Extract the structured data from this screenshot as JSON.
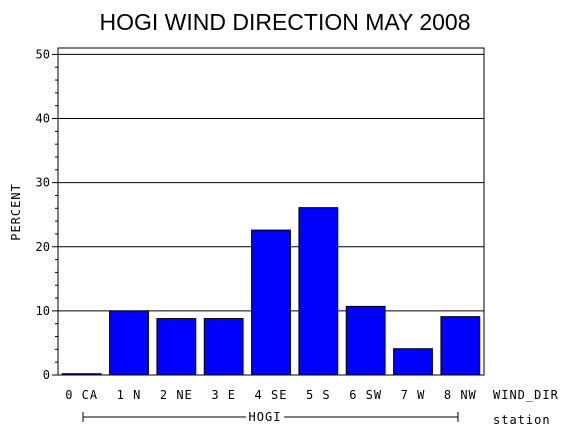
{
  "chart_data": {
    "type": "bar",
    "title": "HOGI WIND DIRECTION MAY 2008",
    "ylabel": "PERCENT",
    "xlabel": "WIND_DIR",
    "group_label": "HOGI",
    "group_axis_label": "station",
    "categories": [
      "0 CA",
      "1 N",
      "2 NE",
      "3 E",
      "4 SE",
      "5 S",
      "6 SW",
      "7 W",
      "8 NW"
    ],
    "values": [
      0.2,
      10.0,
      8.8,
      8.8,
      22.6,
      26.1,
      10.7,
      4.1,
      9.1
    ],
    "ylim": [
      0,
      51
    ],
    "yticks": [
      0,
      10,
      20,
      30,
      40,
      50
    ],
    "grid": true,
    "bar_color": "#0000ff"
  }
}
